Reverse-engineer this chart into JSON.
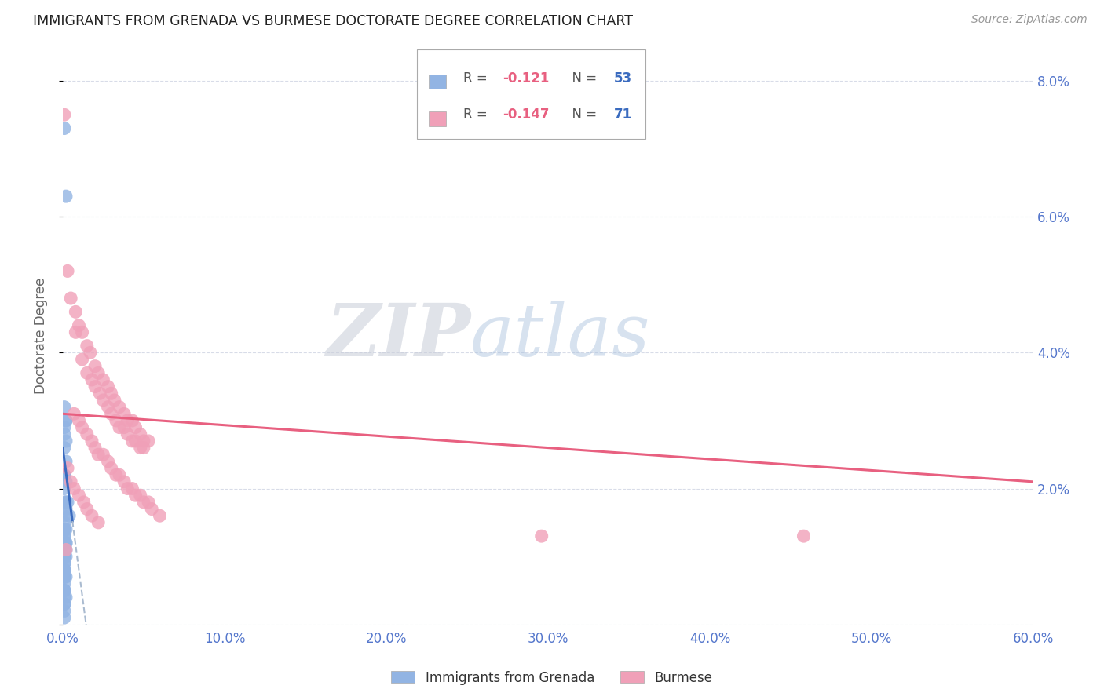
{
  "title": "IMMIGRANTS FROM GRENADA VS BURMESE DOCTORATE DEGREE CORRELATION CHART",
  "source": "Source: ZipAtlas.com",
  "ylabel": "Doctorate Degree",
  "legend_label1": "Immigrants from Grenada",
  "legend_label2": "Burmese",
  "R1": -0.121,
  "N1": 53,
  "R2": -0.147,
  "N2": 71,
  "xlim": [
    0.0,
    0.6
  ],
  "ylim": [
    0.0,
    0.085
  ],
  "yticks": [
    0.0,
    0.02,
    0.04,
    0.06,
    0.08
  ],
  "xticks": [
    0.0,
    0.1,
    0.2,
    0.3,
    0.4,
    0.5,
    0.6
  ],
  "color_blue": "#92b4e3",
  "color_pink": "#f0a0b8",
  "color_blue_line": "#3a6bbf",
  "color_pink_line": "#e86080",
  "color_dashed": "#aabbd0",
  "background": "#ffffff",
  "grid_color": "#d8dce8",
  "axis_label_color": "#5577cc",
  "blue_scatter_x": [
    0.001,
    0.002,
    0.001,
    0.002,
    0.001,
    0.002,
    0.001,
    0.002,
    0.001,
    0.002,
    0.001,
    0.001,
    0.002,
    0.001,
    0.002,
    0.001,
    0.002,
    0.001,
    0.001,
    0.002,
    0.001,
    0.001,
    0.002,
    0.001,
    0.002,
    0.001,
    0.001,
    0.002,
    0.001,
    0.001,
    0.001,
    0.001,
    0.002,
    0.001,
    0.001,
    0.001,
    0.001,
    0.001,
    0.002,
    0.001,
    0.003,
    0.004,
    0.001,
    0.001,
    0.002,
    0.001,
    0.001,
    0.001,
    0.001,
    0.001,
    0.001,
    0.001,
    0.001
  ],
  "blue_scatter_y": [
    0.073,
    0.063,
    0.032,
    0.03,
    0.028,
    0.03,
    0.029,
    0.027,
    0.026,
    0.024,
    0.022,
    0.022,
    0.021,
    0.02,
    0.018,
    0.018,
    0.017,
    0.016,
    0.014,
    0.014,
    0.013,
    0.013,
    0.012,
    0.012,
    0.011,
    0.011,
    0.01,
    0.01,
    0.009,
    0.008,
    0.008,
    0.007,
    0.007,
    0.007,
    0.006,
    0.005,
    0.005,
    0.005,
    0.004,
    0.004,
    0.018,
    0.016,
    0.015,
    0.014,
    0.012,
    0.01,
    0.009,
    0.008,
    0.007,
    0.003,
    0.003,
    0.002,
    0.001
  ],
  "pink_scatter_x": [
    0.001,
    0.003,
    0.005,
    0.008,
    0.01,
    0.012,
    0.015,
    0.017,
    0.02,
    0.022,
    0.025,
    0.028,
    0.03,
    0.032,
    0.035,
    0.038,
    0.04,
    0.043,
    0.045,
    0.048,
    0.05,
    0.053,
    0.008,
    0.012,
    0.015,
    0.018,
    0.02,
    0.023,
    0.025,
    0.028,
    0.03,
    0.033,
    0.035,
    0.038,
    0.04,
    0.043,
    0.045,
    0.048,
    0.05,
    0.007,
    0.01,
    0.012,
    0.015,
    0.018,
    0.02,
    0.022,
    0.025,
    0.028,
    0.03,
    0.033,
    0.035,
    0.038,
    0.04,
    0.043,
    0.045,
    0.048,
    0.05,
    0.053,
    0.055,
    0.06,
    0.003,
    0.005,
    0.007,
    0.01,
    0.013,
    0.015,
    0.018,
    0.022,
    0.296,
    0.458,
    0.002
  ],
  "pink_scatter_y": [
    0.075,
    0.052,
    0.048,
    0.046,
    0.044,
    0.043,
    0.041,
    0.04,
    0.038,
    0.037,
    0.036,
    0.035,
    0.034,
    0.033,
    0.032,
    0.031,
    0.03,
    0.03,
    0.029,
    0.028,
    0.027,
    0.027,
    0.043,
    0.039,
    0.037,
    0.036,
    0.035,
    0.034,
    0.033,
    0.032,
    0.031,
    0.03,
    0.029,
    0.029,
    0.028,
    0.027,
    0.027,
    0.026,
    0.026,
    0.031,
    0.03,
    0.029,
    0.028,
    0.027,
    0.026,
    0.025,
    0.025,
    0.024,
    0.023,
    0.022,
    0.022,
    0.021,
    0.02,
    0.02,
    0.019,
    0.019,
    0.018,
    0.018,
    0.017,
    0.016,
    0.023,
    0.021,
    0.02,
    0.019,
    0.018,
    0.017,
    0.016,
    0.015,
    0.013,
    0.013,
    0.011
  ],
  "blue_line_x0": 0.0,
  "blue_line_x1": 0.006,
  "blue_line_dash_x1": 0.14,
  "blue_line_y_at_0": 0.026,
  "blue_line_slope": -1.8,
  "pink_line_y_at_0": 0.031,
  "pink_line_y_at_60": 0.021
}
